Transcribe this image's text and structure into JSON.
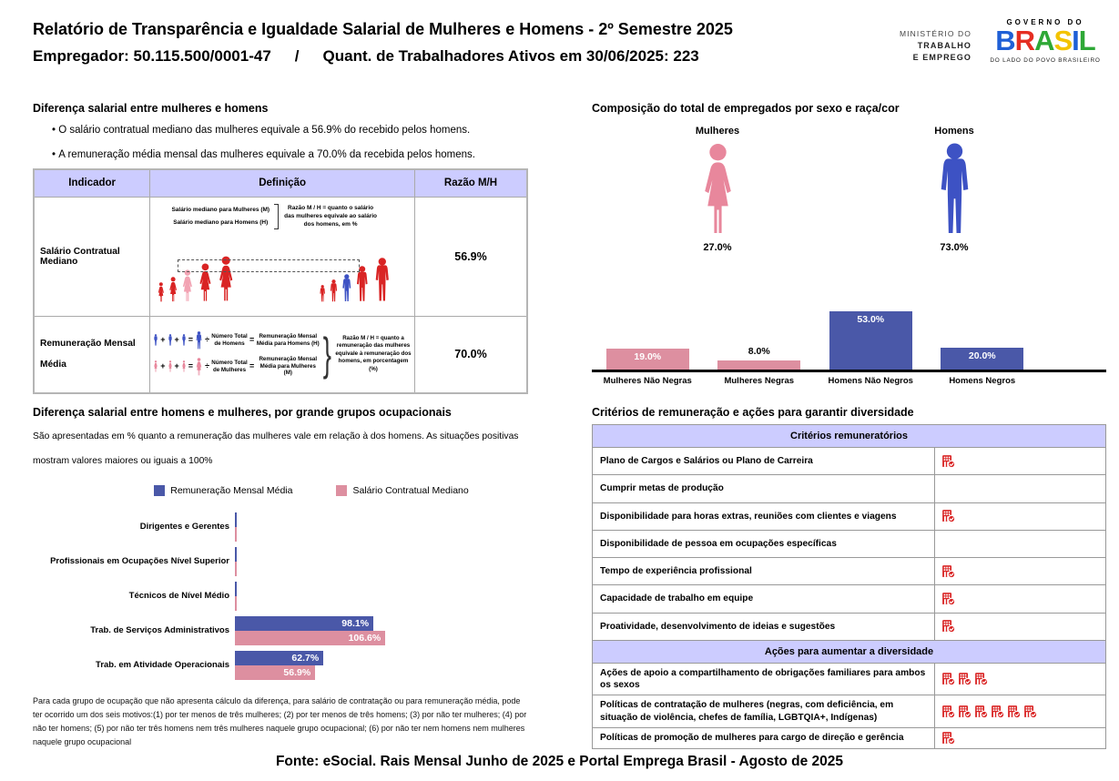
{
  "header": {
    "title": "Relatório de Transparência e Igualdade Salarial de Mulheres e Homens - 2º Semestre 2025",
    "employer_label": "Empregador: 50.115.500/0001-47",
    "separator": "/",
    "workers_label": "Quant. de Trabalhadores Ativos em 30/06/2025: 223",
    "ministry_logo": {
      "line1": "MINISTÉRIO DO",
      "line2": "TRABALHO",
      "line3": "E EMPREGO"
    },
    "gov_logo": {
      "top": "GOVERNO DO",
      "brand_letters": [
        "B",
        "R",
        "A",
        "S",
        "I",
        "L"
      ],
      "brand_colors": [
        "#1f5fd6",
        "#e52e22",
        "#2ea836",
        "#f3c300",
        "#1f5fd6",
        "#2ea836"
      ],
      "tagline": "DO LADO DO POVO BRASILEIRO"
    }
  },
  "salary_gap": {
    "title": "Diferença salarial entre mulheres e homens",
    "bullets": [
      "O salário contratual mediano das mulheres equivale a 56.9% do recebido pelos homens.",
      "A remuneração média mensal das mulheres equivale a 70.0% da recebida pelos homens."
    ],
    "table_headers": [
      "Indicador",
      "Definição",
      "Razão M/H"
    ],
    "row_median": {
      "indicator": "Salário Contratual Mediano",
      "label_women": "Salário mediano para Mulheres (M)",
      "label_men": "Salário mediano para Homens (H)",
      "note": "Razão M / H = quanto o salário das mulheres equivale ao salário dos homens, em %",
      "ratio": "56.9%"
    },
    "row_mean": {
      "indicator": "Remuneração Mensal Média",
      "plus": "+",
      "equals": "=",
      "divide": "÷",
      "brace": "}",
      "men_divisor": "Número Total de Homens",
      "men_result": "Remuneração Mensal Média para Homens (H)",
      "women_divisor": "Número Total de Mulheres",
      "women_result": "Remuneração Mensal Média para Mulheres (M)",
      "note": "Razão M / H = quanto a remuneração das mulheres equivale à remuneração dos homens, em porcentagem (%)",
      "ratio": "70.0%"
    }
  },
  "composition": {
    "title": "Composição do total de empregados por sexo e raça/cor",
    "women_label": "Mulheres",
    "women_pct": "27.0%",
    "men_label": "Homens",
    "men_pct": "73.0%",
    "chart_data": {
      "type": "bar",
      "categories": [
        "Mulheres Não Negras",
        "Mulheres Negras",
        "Homens Não Negros",
        "Homens Negros"
      ],
      "values": [
        19.0,
        8.0,
        53.0,
        20.0
      ],
      "labels": [
        "19.0%",
        "8.0%",
        "53.0%",
        "20.0%"
      ],
      "colors": [
        "pink",
        "pink",
        "blue",
        "blue"
      ],
      "label_inside": [
        true,
        false,
        true,
        true
      ],
      "ylim": [
        0,
        60
      ]
    }
  },
  "occupational_gap": {
    "title": "Diferença salarial entre homens e mulheres, por grande grupos ocupacionais",
    "description_line1": "São apresentadas em % quanto a remuneração das mulheres vale em relação à dos homens. As situações positivas",
    "description_line2": "mostram valores maiores ou iguais a 100%",
    "legend": [
      "Remuneração Mensal Média",
      "Salário Contratual Mediano"
    ],
    "chart_data": {
      "type": "bar",
      "orientation": "horizontal",
      "categories": [
        "Dirigentes e Gerentes",
        "Profissionais em Ocupações Nível Superior",
        "Técnicos de Nível Médio",
        "Trab. de Serviços Administrativos",
        "Trab. em Atividade Operacionais"
      ],
      "series": [
        {
          "name": "Remuneração Mensal Média",
          "color": "blue",
          "values": [
            0,
            0,
            0,
            98.1,
            62.7
          ],
          "labels": [
            "",
            "",
            "",
            "98.1%",
            "62.7%"
          ]
        },
        {
          "name": "Salário Contratual Mediano",
          "color": "pink",
          "values": [
            0,
            0,
            0,
            106.6,
            56.9
          ],
          "labels": [
            "",
            "",
            "",
            "106.6%",
            "56.9%"
          ]
        }
      ],
      "xlim": [
        0,
        250
      ]
    },
    "footnote": "Para cada grupo de ocupação que não apresenta cálculo da diferença, para salário de contratação ou para remuneração média, pode ter ocorrido um dos seis motivos:(1) por ter menos de três mulheres; (2) por ter menos de três homens; (3) por não ter mulheres; (4) por não ter homens; (5) por não ter três homens nem três mulheres naquele grupo ocupacional; (6) por não ter nem homens nem mulheres naquele grupo ocupacional"
  },
  "criteria": {
    "title": "Critérios de remuneração e ações para garantir diversidade",
    "sections": [
      {
        "header": "Critérios remuneratórios",
        "rows": [
          {
            "label": "Plano de Cargos e Salários ou Plano de Carreira",
            "icons": 1
          },
          {
            "label": "Cumprir metas de produção",
            "icons": 0
          },
          {
            "label": "Disponibilidade para horas extras, reuniões com clientes e viagens",
            "icons": 1
          },
          {
            "label": "Disponibilidade de pessoa em ocupações específicas",
            "icons": 0
          },
          {
            "label": "Tempo de experiência profissional",
            "icons": 1
          },
          {
            "label": "Capacidade de trabalho em equipe",
            "icons": 1
          },
          {
            "label": "Proatividade, desenvolvimento de ideias e sugestões",
            "icons": 1
          }
        ]
      },
      {
        "header": "Ações para aumentar a diversidade",
        "rows": [
          {
            "label": "Ações de apoio a compartilhamento de obrigações familiares para ambos os sexos",
            "icons": 3
          },
          {
            "label": "Políticas de contratação de mulheres (negras, com deficiência, em situação de violência, chefes de família, LGBTQIA+, Indígenas)",
            "icons": 6
          },
          {
            "label": "Políticas de promoção de mulheres para cargo de direção e gerência",
            "icons": 1
          }
        ]
      }
    ]
  },
  "footer": "Fonte: eSocial. Rais Mensal Junho de 2025 e Portal Emprega Brasil - Agosto de 2025",
  "colors": {
    "header_lavender": "#ccccff",
    "bar_blue": "#4a58a8",
    "bar_pink": "#dd8fa0",
    "figure_blue": "#3d52c4",
    "figure_pink": "#e8879c",
    "figure_red": "#d92424",
    "figure_highlight_pink": "#f2a3b3",
    "icon_red": "#d92424"
  }
}
